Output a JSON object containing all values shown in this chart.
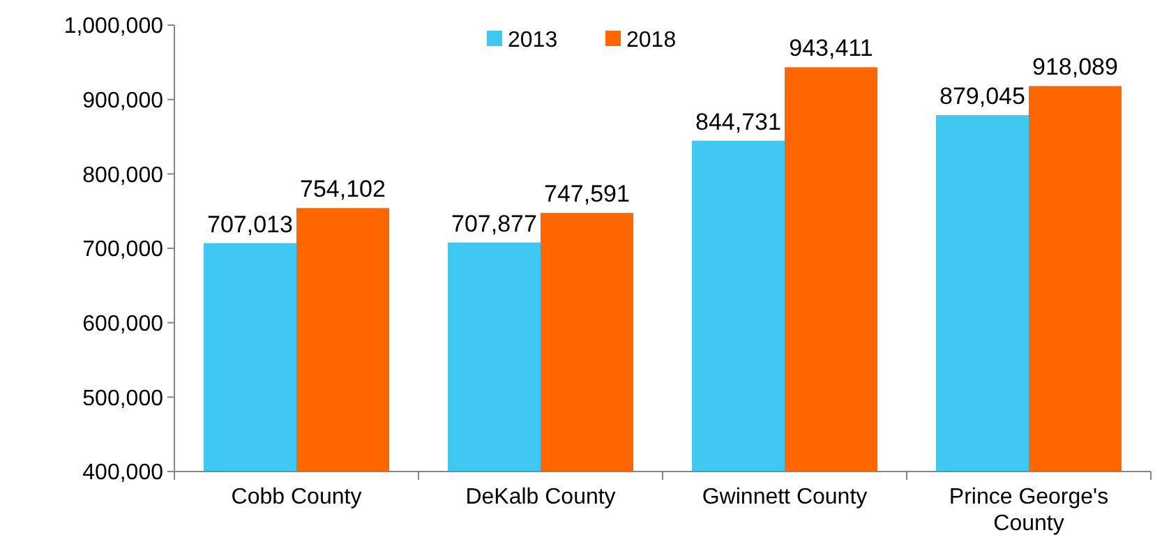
{
  "chart_data": {
    "type": "bar",
    "categories": [
      "Cobb County",
      "DeKalb County",
      "Gwinnett County",
      "Prince George's County"
    ],
    "series": [
      {
        "name": "2013",
        "color": "#3fc8f2",
        "values": [
          707013,
          707877,
          844731,
          879045
        ],
        "value_labels": [
          "707,013",
          "707,877",
          "844,731",
          "879,045"
        ]
      },
      {
        "name": "2018",
        "color": "#ff6600",
        "values": [
          754102,
          747591,
          943411,
          918089
        ],
        "value_labels": [
          "754,102",
          "747,591",
          "943,411",
          "918,089"
        ]
      }
    ],
    "ylim": [
      400000,
      1000000
    ],
    "yticks": [
      {
        "value": 400000,
        "label": "400,000"
      },
      {
        "value": 500000,
        "label": "500,000"
      },
      {
        "value": 600000,
        "label": "600,000"
      },
      {
        "value": 700000,
        "label": "700,000"
      },
      {
        "value": 800000,
        "label": "800,000"
      },
      {
        "value": 900000,
        "label": "900,000"
      },
      {
        "value": 1000000,
        "label": "1,000,000"
      }
    ],
    "legend": "top",
    "grid": false
  }
}
